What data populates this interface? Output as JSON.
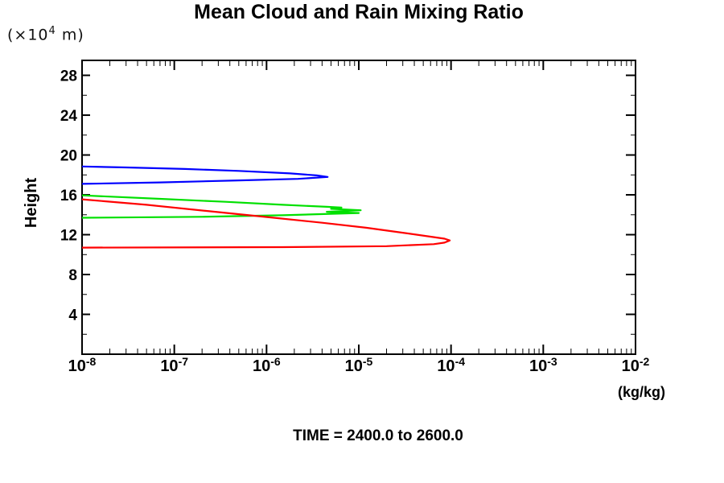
{
  "page": {
    "background": "#ffffff",
    "foreground": "#000000"
  },
  "axis_labels": {
    "y_units_prefix": "(×10",
    "y_units_exponent": "4",
    "y_units_suffix": " m)"
  },
  "chart_data": {
    "type": "line",
    "title": "Mean Cloud and Rain Mixing Ratio",
    "xlabel": "(kg/kg)",
    "ylabel": "Height",
    "caption": "TIME = 2400.0 to 2600.0",
    "x_scale": "log",
    "xlim": [
      1e-08,
      0.01
    ],
    "ylim": [
      0,
      29.5
    ],
    "x_tick_base": "10",
    "x_tick_exponents": [
      -8,
      -7,
      -6,
      -5,
      -4,
      -3,
      -2
    ],
    "y_major_ticks": [
      4,
      8,
      12,
      16,
      20,
      24,
      28
    ],
    "y_minor_ticks": [
      2,
      6,
      10,
      14,
      18,
      22,
      26
    ],
    "grid": false,
    "legend": "none",
    "frame_color": "#000000",
    "series": [
      {
        "name": "blue-line",
        "color": "#0000ff",
        "points": [
          [
            1e-08,
            18.85
          ],
          [
            3e-08,
            18.75
          ],
          [
            1.3e-07,
            18.6
          ],
          [
            5e-07,
            18.4
          ],
          [
            1.8e-06,
            18.15
          ],
          [
            3.5e-06,
            17.95
          ],
          [
            4.6e-06,
            17.8
          ],
          [
            2.2e-06,
            17.6
          ],
          [
            5e-07,
            17.45
          ],
          [
            7e-08,
            17.25
          ],
          [
            1e-08,
            17.1
          ]
        ]
      },
      {
        "name": "green-line",
        "color": "#00e000",
        "points": [
          [
            1e-08,
            15.95
          ],
          [
            7e-08,
            15.6
          ],
          [
            3.6e-07,
            15.3
          ],
          [
            1.5e-06,
            15.0
          ],
          [
            4.5e-06,
            14.8
          ],
          [
            6.5e-06,
            14.72
          ],
          [
            5e-06,
            14.6
          ],
          [
            1.05e-05,
            14.45
          ],
          [
            4.5e-06,
            14.3
          ],
          [
            1e-05,
            14.18
          ],
          [
            1.5e-06,
            13.95
          ],
          [
            2e-07,
            13.8
          ],
          [
            1e-08,
            13.7
          ]
        ]
      },
      {
        "name": "red-line",
        "color": "#ff0000",
        "points": [
          [
            1e-08,
            15.55
          ],
          [
            5e-08,
            15.0
          ],
          [
            2.4e-07,
            14.35
          ],
          [
            1.2e-06,
            13.7
          ],
          [
            4e-06,
            13.2
          ],
          [
            1.2e-05,
            12.7
          ],
          [
            3e-05,
            12.2
          ],
          [
            6e-05,
            11.8
          ],
          [
            8.5e-05,
            11.6
          ],
          [
            9.7e-05,
            11.42
          ],
          [
            8.5e-05,
            11.2
          ],
          [
            6.5e-05,
            11.05
          ],
          [
            2e-05,
            10.85
          ],
          [
            1.5e-06,
            10.75
          ],
          [
            1e-08,
            10.7
          ]
        ]
      }
    ]
  }
}
